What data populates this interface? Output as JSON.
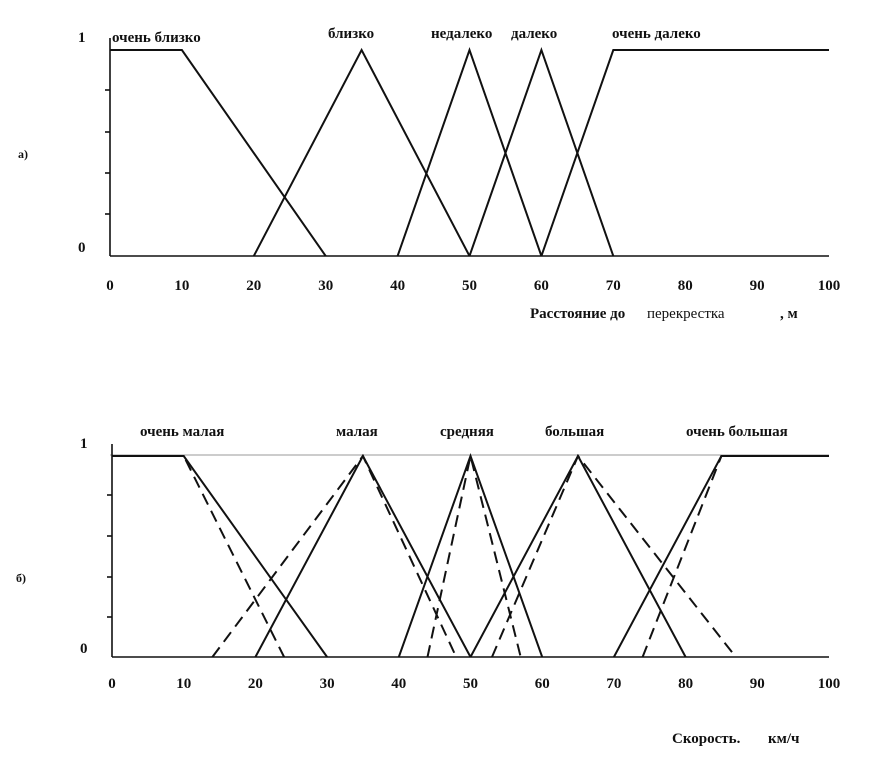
{
  "chart_data": [
    {
      "type": "line",
      "panel_label": "а)",
      "xlabel_parts": [
        "Расстояние до",
        "перекрестка",
        ", м"
      ],
      "xlim": [
        0,
        100
      ],
      "ylim": [
        0,
        1
      ],
      "x_ticks": [
        0,
        10,
        20,
        30,
        40,
        50,
        60,
        70,
        80,
        90,
        100
      ],
      "y_ticks": [
        "0",
        "1"
      ],
      "series": [
        {
          "name": "очень близко",
          "points": [
            [
              0,
              1
            ],
            [
              10,
              1
            ],
            [
              30,
              0
            ]
          ]
        },
        {
          "name": "близко",
          "points": [
            [
              20,
              0
            ],
            [
              35,
              1
            ],
            [
              50,
              0
            ]
          ]
        },
        {
          "name": "недалеко",
          "points": [
            [
              40,
              0
            ],
            [
              50,
              1
            ],
            [
              60,
              0
            ]
          ]
        },
        {
          "name": "далеко",
          "points": [
            [
              50,
              0
            ],
            [
              60,
              1
            ],
            [
              70,
              0
            ]
          ]
        },
        {
          "name": "очень далеко",
          "points": [
            [
              60,
              0
            ],
            [
              70,
              1
            ],
            [
              100,
              1
            ]
          ]
        }
      ]
    },
    {
      "type": "line",
      "panel_label": "б)",
      "xlabel_parts": [
        "Скорость.",
        "км/ч"
      ],
      "xlim": [
        0,
        100
      ],
      "ylim": [
        0,
        1
      ],
      "x_ticks": [
        0,
        10,
        20,
        30,
        40,
        50,
        60,
        70,
        80,
        90,
        100
      ],
      "y_ticks": [
        "0",
        "1"
      ],
      "series": [
        {
          "name": "очень малая",
          "points": [
            [
              0,
              1
            ],
            [
              10,
              1
            ],
            [
              30,
              0
            ]
          ]
        },
        {
          "name": "малая",
          "points": [
            [
              20,
              0
            ],
            [
              35,
              1
            ],
            [
              50,
              0
            ]
          ]
        },
        {
          "name": "средняя",
          "points": [
            [
              40,
              0
            ],
            [
              50,
              1
            ],
            [
              60,
              0
            ]
          ]
        },
        {
          "name": "большая",
          "points": [
            [
              50,
              0
            ],
            [
              65,
              1
            ],
            [
              80,
              0
            ]
          ]
        },
        {
          "name": "очень большая",
          "points": [
            [
              70,
              0
            ],
            [
              85,
              1
            ],
            [
              100,
              1
            ]
          ]
        }
      ],
      "dashed_series": [
        {
          "points": [
            [
              0,
              1
            ],
            [
              10,
              1
            ],
            [
              24,
              0
            ]
          ]
        },
        {
          "points": [
            [
              14,
              0
            ],
            [
              35,
              1
            ],
            [
              48,
              0
            ]
          ]
        },
        {
          "points": [
            [
              44,
              0
            ],
            [
              50,
              1
            ],
            [
              57,
              0
            ]
          ]
        },
        {
          "points": [
            [
              53,
              0
            ],
            [
              65,
              1
            ],
            [
              87,
              0
            ]
          ]
        },
        {
          "points": [
            [
              74,
              0
            ],
            [
              85,
              1
            ],
            [
              100,
              1
            ]
          ]
        }
      ]
    }
  ]
}
